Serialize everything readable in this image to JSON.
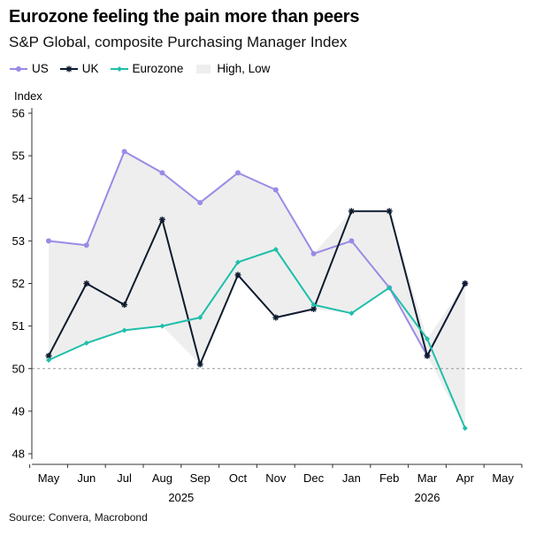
{
  "title": "Eurozone feeling the pain more than peers",
  "subtitle": "S&P Global, composite Purchasing Manager Index",
  "source": "Source: Convera, Macrobond",
  "colors": {
    "us": "#9B8AE6",
    "uk": "#0D1B2E",
    "eurozone": "#1FBFAA",
    "band": "#EEEEEE",
    "reference_line": "#999999",
    "axis": "#333333"
  },
  "legend": [
    {
      "label": "US",
      "key": "us",
      "icon": "line-dot-marker"
    },
    {
      "label": "UK",
      "key": "uk",
      "icon": "line-star-marker"
    },
    {
      "label": "Eurozone",
      "key": "eurozone",
      "icon": "line-diamond-marker"
    },
    {
      "label": "High, Low",
      "key": "band",
      "icon": "shaded-band"
    }
  ],
  "chart_data": {
    "type": "line",
    "ylabel": "Index",
    "ylim": [
      48,
      56
    ],
    "yticks": [
      48,
      49,
      50,
      51,
      52,
      53,
      54,
      55,
      56
    ],
    "reference_line": 50,
    "categories": [
      "May",
      "Jun",
      "Jul",
      "Aug",
      "Sep",
      "Oct",
      "Nov",
      "Dec",
      "Jan",
      "Feb",
      "Mar",
      "Apr",
      "May"
    ],
    "year_labels": [
      {
        "label": "2025",
        "category_index": 3.5
      },
      {
        "label": "2026",
        "category_index": 10
      }
    ],
    "series": [
      {
        "name": "US",
        "key": "us",
        "marker": "dot",
        "values": [
          53.0,
          52.9,
          55.1,
          54.6,
          53.9,
          54.6,
          54.2,
          52.7,
          53.0,
          51.9,
          50.3,
          52.0,
          null
        ]
      },
      {
        "name": "UK",
        "key": "uk",
        "marker": "star",
        "values": [
          50.3,
          52.0,
          51.5,
          53.5,
          50.1,
          52.2,
          51.2,
          51.4,
          53.7,
          53.7,
          50.3,
          52.0,
          null
        ]
      },
      {
        "name": "Eurozone",
        "key": "eurozone",
        "marker": "diamond",
        "values": [
          50.2,
          50.6,
          50.9,
          51.0,
          51.2,
          52.5,
          52.8,
          51.5,
          51.3,
          51.9,
          50.7,
          48.6,
          null
        ]
      }
    ],
    "band": {
      "name": "High, Low",
      "type": "high-low range of the three series"
    },
    "legend_position": "top-left",
    "grid": false
  }
}
